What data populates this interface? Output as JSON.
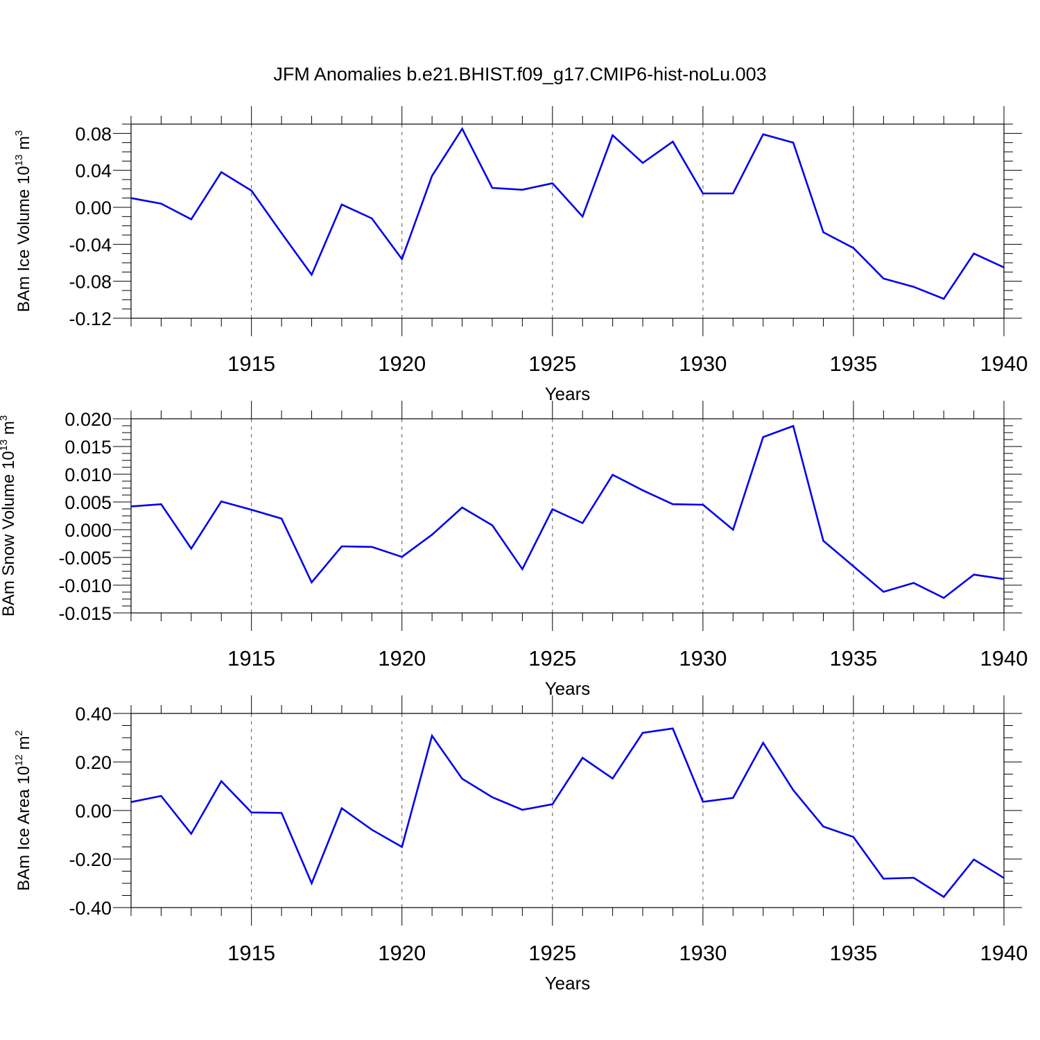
{
  "title": "JFM Anomalies b.e21.BHIST.f09_g17.CMIP6-hist-noLu.003",
  "colors": {
    "line": "#0000ee",
    "axis": "#000000",
    "grid": "#555555"
  },
  "chart_data": [
    {
      "type": "line",
      "ylabel_main": "BAm Ice Volume 10",
      "ylabel_exp": "13",
      "ylabel_unit": " m",
      "ylabel_unit_exp": "3",
      "xlabel": "Years",
      "xlim": [
        1911,
        1940
      ],
      "ylim": [
        -0.12,
        0.09
      ],
      "yticks": [
        -0.12,
        -0.08,
        -0.04,
        0.0,
        0.04,
        0.08
      ],
      "ytick_labels": [
        "-0.12",
        "-0.08",
        "-0.04",
        "0.00",
        "0.04",
        "0.08"
      ],
      "xticks": [
        1915,
        1920,
        1925,
        1930,
        1935,
        1940
      ],
      "xtick_labels": [
        "1915",
        "1920",
        "1925",
        "1930",
        "1935",
        "1940"
      ],
      "grid": "vertical dashed at labeled years",
      "x": [
        1911,
        1912,
        1913,
        1914,
        1915,
        1916,
        1917,
        1918,
        1919,
        1920,
        1921,
        1922,
        1923,
        1924,
        1925,
        1926,
        1927,
        1928,
        1929,
        1930,
        1931,
        1932,
        1933,
        1934,
        1935,
        1936,
        1937,
        1938,
        1939,
        1940
      ],
      "values": [
        0.01,
        0.004,
        -0.013,
        0.038,
        0.018,
        -0.028,
        -0.073,
        0.003,
        -0.012,
        -0.056,
        0.034,
        0.085,
        0.021,
        0.019,
        0.026,
        -0.01,
        0.078,
        0.048,
        0.071,
        0.015,
        0.015,
        0.079,
        0.07,
        -0.027,
        -0.044,
        -0.077,
        -0.086,
        -0.099,
        -0.05,
        -0.065
      ]
    },
    {
      "type": "line",
      "ylabel_main": "BAm Snow Volume 10",
      "ylabel_exp": "13",
      "ylabel_unit": " m",
      "ylabel_unit_exp": "3",
      "xlabel": "Years",
      "xlim": [
        1911,
        1940
      ],
      "ylim": [
        -0.015,
        0.02
      ],
      "yticks": [
        -0.015,
        -0.01,
        -0.005,
        0.0,
        0.005,
        0.01,
        0.015,
        0.02
      ],
      "ytick_labels": [
        "-0.015",
        "-0.010",
        "-0.005",
        "0.000",
        "0.005",
        "0.010",
        "0.015",
        "0.020"
      ],
      "xticks": [
        1915,
        1920,
        1925,
        1930,
        1935,
        1940
      ],
      "xtick_labels": [
        "1915",
        "1920",
        "1925",
        "1930",
        "1935",
        "1940"
      ],
      "grid": "vertical dashed at labeled years",
      "x": [
        1911,
        1912,
        1913,
        1914,
        1915,
        1916,
        1917,
        1918,
        1919,
        1920,
        1921,
        1922,
        1923,
        1924,
        1925,
        1926,
        1927,
        1928,
        1929,
        1930,
        1931,
        1932,
        1933,
        1934,
        1935,
        1936,
        1937,
        1938,
        1939,
        1940
      ],
      "values": [
        0.0042,
        0.0046,
        -0.0034,
        0.0051,
        0.0036,
        0.002,
        -0.0095,
        -0.003,
        -0.0031,
        -0.0049,
        -0.0009,
        0.004,
        0.0008,
        -0.0071,
        0.0037,
        0.0012,
        0.0099,
        0.0071,
        0.0046,
        0.0045,
        0.0,
        0.0167,
        0.0187,
        -0.002,
        -0.0066,
        -0.0112,
        -0.0096,
        -0.0123,
        -0.0081,
        -0.0089
      ]
    },
    {
      "type": "line",
      "ylabel_main": "BAm Ice Area 10",
      "ylabel_exp": "12",
      "ylabel_unit": " m",
      "ylabel_unit_exp": "2",
      "xlabel": "Years",
      "xlim": [
        1911,
        1940
      ],
      "ylim": [
        -0.4,
        0.4
      ],
      "yticks": [
        -0.4,
        -0.2,
        0.0,
        0.2,
        0.4
      ],
      "ytick_labels": [
        "-0.40",
        "-0.20",
        "0.00",
        "0.20",
        "0.40"
      ],
      "xticks": [
        1915,
        1920,
        1925,
        1930,
        1935,
        1940
      ],
      "xtick_labels": [
        "1915",
        "1920",
        "1925",
        "1930",
        "1935",
        "1940"
      ],
      "grid": "vertical dashed at labeled years",
      "x": [
        1911,
        1912,
        1913,
        1914,
        1915,
        1916,
        1917,
        1918,
        1919,
        1920,
        1921,
        1922,
        1923,
        1924,
        1925,
        1926,
        1927,
        1928,
        1929,
        1930,
        1931,
        1932,
        1933,
        1934,
        1935,
        1936,
        1937,
        1938,
        1939,
        1940
      ],
      "values": [
        0.035,
        0.06,
        -0.096,
        0.121,
        -0.008,
        -0.01,
        -0.3,
        0.009,
        -0.079,
        -0.15,
        0.308,
        0.131,
        0.055,
        0.003,
        0.026,
        0.217,
        0.132,
        0.32,
        0.338,
        0.036,
        0.052,
        0.279,
        0.084,
        -0.066,
        -0.109,
        -0.281,
        -0.277,
        -0.356,
        -0.202,
        -0.278
      ]
    }
  ]
}
